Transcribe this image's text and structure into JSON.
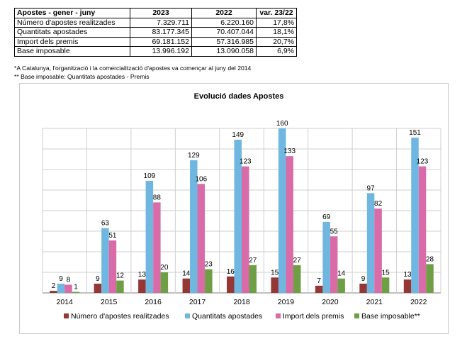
{
  "table": {
    "headers": [
      "Apostes - gener - juny",
      "2023",
      "2022",
      "var. 23/22"
    ],
    "rows": [
      {
        "label": "Número d'apostes realitzades",
        "v2023": "7.329.711",
        "v2022": "6.220.160",
        "var": "17,8%"
      },
      {
        "label": "Quantitats apostades",
        "v2023": "83.177.345",
        "v2022": "70.407.044",
        "var": "18,1%"
      },
      {
        "label": "Import dels premis",
        "v2023": "69.181.152",
        "v2022": "57.316.985",
        "var": "20,7%"
      },
      {
        "label": "Base imposable",
        "v2023": "13.996.192",
        "v2022": "13.090.058",
        "var": "6,9%"
      }
    ]
  },
  "notes": [
    "*A Catalunya, l'organització i la comercialització d'apostes va començar al juny del 2014",
    "** Base imposable: Quantitats apostades - Premis"
  ],
  "chart_data": {
    "type": "bar",
    "title": "Evolució dades Apostes",
    "categories": [
      "2014",
      "2015",
      "2016",
      "2017",
      "2018",
      "2019",
      "2020",
      "2021",
      "2022"
    ],
    "series": [
      {
        "name": "Número d'apostes realitzades",
        "color": "#953735",
        "values": [
          2,
          9,
          13,
          14,
          16,
          15,
          7,
          9,
          13
        ]
      },
      {
        "name": "Quantitats apostades",
        "color": "#6FB7E0",
        "values": [
          9,
          63,
          109,
          129,
          149,
          160,
          69,
          97,
          151
        ]
      },
      {
        "name": "Import dels premis",
        "color": "#D86BA8",
        "values": [
          8,
          51,
          88,
          106,
          123,
          133,
          55,
          82,
          123
        ]
      },
      {
        "name": "Base imposable**",
        "color": "#6E9F45",
        "values": [
          1,
          12,
          20,
          23,
          27,
          27,
          14,
          15,
          28
        ]
      }
    ],
    "ylim": [
      0,
      160
    ],
    "grid": true,
    "legend": "bottom"
  }
}
